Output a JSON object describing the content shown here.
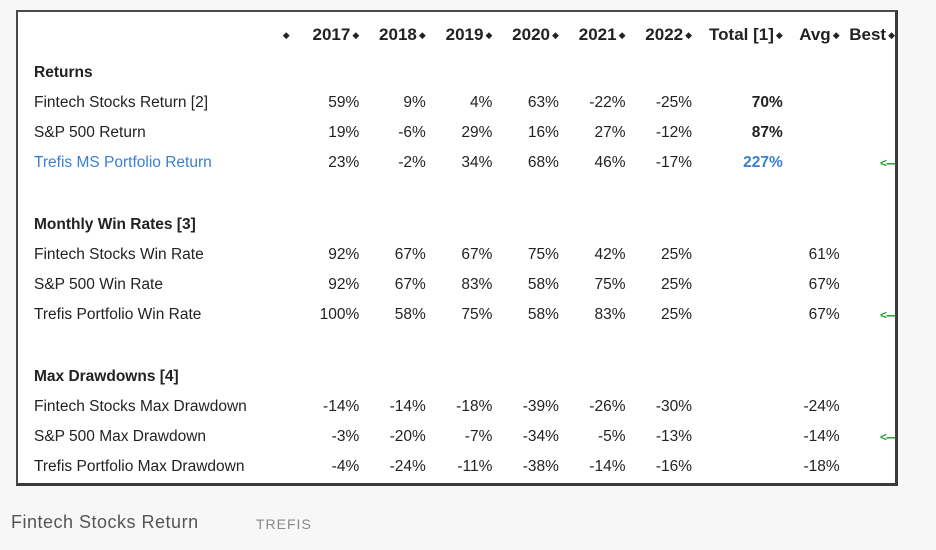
{
  "table": {
    "headers": [
      "2017",
      "2018",
      "2019",
      "2020",
      "2021",
      "2022",
      "Total [1]",
      "Avg",
      "Best"
    ],
    "sections": [
      {
        "title": "Returns",
        "rows": [
          {
            "label": "Fintech Stocks Return [2]",
            "values": [
              "59%",
              "9%",
              "4%",
              "63%",
              "-22%",
              "-25%"
            ],
            "total": "70%",
            "avg": "",
            "best": ""
          },
          {
            "label": "S&P 500 Return",
            "values": [
              "19%",
              "-6%",
              "29%",
              "16%",
              "27%",
              "-12%"
            ],
            "total": "87%",
            "avg": "",
            "best": ""
          },
          {
            "label": "Trefis MS Portfolio Return",
            "values": [
              "23%",
              "-2%",
              "34%",
              "68%",
              "46%",
              "-17%"
            ],
            "total": "227%",
            "avg": "",
            "best": "<---"
          }
        ]
      },
      {
        "title": "Monthly Win Rates [3]",
        "rows": [
          {
            "label": "Fintech Stocks Win Rate",
            "values": [
              "92%",
              "67%",
              "67%",
              "75%",
              "42%",
              "25%"
            ],
            "total": "",
            "avg": "61%",
            "best": ""
          },
          {
            "label": "S&P 500 Win Rate",
            "values": [
              "92%",
              "67%",
              "83%",
              "58%",
              "75%",
              "25%"
            ],
            "total": "",
            "avg": "67%",
            "best": ""
          },
          {
            "label": "Trefis Portfolio Win Rate",
            "values": [
              "100%",
              "58%",
              "75%",
              "58%",
              "83%",
              "25%"
            ],
            "total": "",
            "avg": "67%",
            "best": "<---"
          }
        ]
      },
      {
        "title": "Max Drawdowns [4]",
        "rows": [
          {
            "label": "Fintech Stocks Max Drawdown",
            "values": [
              "-14%",
              "-14%",
              "-18%",
              "-39%",
              "-26%",
              "-30%"
            ],
            "total": "",
            "avg": "-24%",
            "best": ""
          },
          {
            "label": "S&P 500 Max Drawdown",
            "values": [
              "-3%",
              "-20%",
              "-7%",
              "-34%",
              "-5%",
              "-13%"
            ],
            "total": "",
            "avg": "-14%",
            "best": "<---"
          },
          {
            "label": "Trefis Portfolio Max Drawdown",
            "values": [
              "-4%",
              "-24%",
              "-11%",
              "-38%",
              "-14%",
              "-16%"
            ],
            "total": "",
            "avg": "-18%",
            "best": ""
          }
        ]
      }
    ]
  },
  "caption": {
    "title": "Fintech Stocks Return",
    "source": "TREFIS"
  },
  "colors": {
    "highlight": "#3a7fd0",
    "best_arrow": "#2a9a2a"
  }
}
